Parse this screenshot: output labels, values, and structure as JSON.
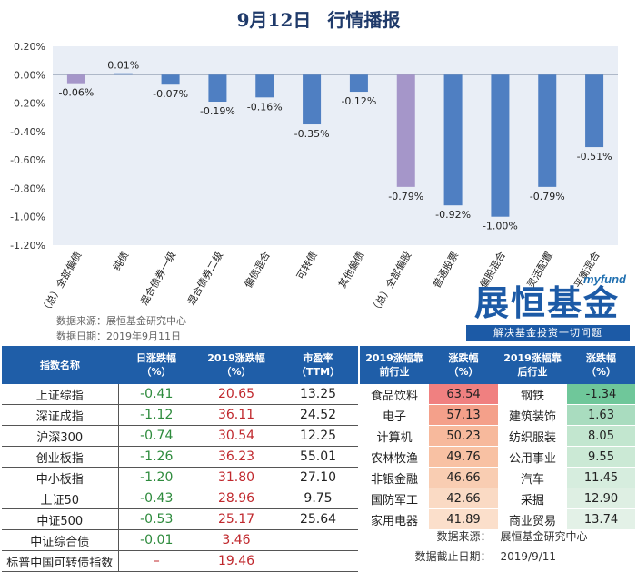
{
  "header": {
    "date": "9月12日",
    "title": "行情播报"
  },
  "chart_data": {
    "type": "bar",
    "categories": [
      "（总）全部偏债",
      "纯债",
      "混合债券一级",
      "混合债券二级",
      "偏债混合",
      "可转债",
      "其他偏债",
      "（总）全部偏股",
      "普通股票",
      "偏股混合",
      "灵活配置",
      "平衡混合"
    ],
    "values": [
      -0.06,
      0.01,
      -0.07,
      -0.19,
      -0.16,
      -0.35,
      -0.12,
      -0.79,
      -0.92,
      -1.0,
      -0.79,
      -0.51
    ],
    "data_labels": [
      "-0.06%",
      "0.01%",
      "-0.07%",
      "-0.19%",
      "-0.16%",
      "-0.35%",
      "-0.12%",
      "-0.79%",
      "-0.92%",
      "-1.00%",
      "-0.79%",
      "-0.51%"
    ],
    "bar_colors": [
      "#a596c9",
      "#4f7fc2",
      "#4f7fc2",
      "#4f7fc2",
      "#4f7fc2",
      "#4f7fc2",
      "#4f7fc2",
      "#a596c9",
      "#4f7fc2",
      "#4f7fc2",
      "#4f7fc2",
      "#4f7fc2"
    ],
    "ylim": [
      -1.2,
      0.2
    ],
    "yticks": [
      "0.20%",
      "0.00%",
      "-0.20%",
      "-0.40%",
      "-0.60%",
      "-0.80%",
      "-1.00%",
      "-1.20%"
    ],
    "ytick_values": [
      0.2,
      0,
      -0.2,
      -0.4,
      -0.6,
      -0.8,
      -1.0,
      -1.2
    ],
    "plot_bg": "#e9eef6"
  },
  "source": {
    "line1": "数据来源：展恒基金研究中心",
    "line2": "数据日期：2019年9月11日"
  },
  "logo": {
    "myfund": "myfund",
    "brand": "展恒基金",
    "slogan": "解决基金投资一切问题"
  },
  "index_table": {
    "headers": [
      "指数名称",
      "日涨跌幅（%）",
      "2019涨跌幅（%）",
      "市盈率（TTM）"
    ],
    "rows": [
      {
        "name": "上证综指",
        "day": "-0.41",
        "ytd": "20.65",
        "pe": "13.25"
      },
      {
        "name": "深证成指",
        "day": "-1.12",
        "ytd": "36.11",
        "pe": "24.52"
      },
      {
        "name": "沪深300",
        "day": "-0.74",
        "ytd": "30.54",
        "pe": "12.25"
      },
      {
        "name": "创业板指",
        "day": "-1.26",
        "ytd": "36.23",
        "pe": "55.01"
      },
      {
        "name": "中小板指",
        "day": "-1.20",
        "ytd": "31.80",
        "pe": "27.10"
      },
      {
        "name": "上证50",
        "day": "-0.43",
        "ytd": "28.96",
        "pe": "9.75"
      },
      {
        "name": "中证500",
        "day": "-0.53",
        "ytd": "25.17",
        "pe": "25.64"
      },
      {
        "name": "中证综合债",
        "day": "-0.01",
        "ytd": "3.46",
        "pe": ""
      },
      {
        "name": "标普中国可转债指数",
        "day": "–",
        "ytd": "19.46",
        "pe": ""
      }
    ]
  },
  "industry_table": {
    "headers": [
      "2019涨幅靠前行业",
      "涨跌幅（%）",
      "2019涨幅靠后行业",
      "涨跌幅（%）"
    ],
    "rows": [
      {
        "top": "食品饮料",
        "top_v": "63.54",
        "top_c": "#f08080",
        "bot": "钢铁",
        "bot_v": "-1.34",
        "bot_c": "#6fc79a"
      },
      {
        "top": "电子",
        "top_v": "57.13",
        "top_c": "#f4a08a",
        "bot": "建筑装饰",
        "bot_v": "1.63",
        "bot_c": "#a9dcbf"
      },
      {
        "top": "计算机",
        "top_v": "50.23",
        "top_c": "#f7b99c",
        "bot": "纺织服装",
        "bot_v": "8.05",
        "bot_c": "#c2e6cf"
      },
      {
        "top": "农林牧渔",
        "top_v": "49.76",
        "top_c": "#f8c1a3",
        "bot": "公用事业",
        "bot_v": "9.55",
        "bot_c": "#cbe9d5"
      },
      {
        "top": "非银金融",
        "top_v": "46.66",
        "top_c": "#f9cdb2",
        "bot": "汽车",
        "bot_v": "11.45",
        "bot_c": "#d6edde"
      },
      {
        "top": "国防军工",
        "top_v": "42.66",
        "top_c": "#fadac4",
        "bot": "采掘",
        "bot_v": "12.90",
        "bot_c": "#deefe3"
      },
      {
        "top": "家用电器",
        "top_v": "41.89",
        "top_c": "#fbdfcb",
        "bot": "商业贸易",
        "bot_v": "13.74",
        "bot_c": "#e3f1e7"
      }
    ]
  },
  "footer": {
    "k1": "数据来源：",
    "v1": "展恒基金研究中心",
    "k2": "数据截止日期：",
    "v2": "2019/9/11"
  }
}
